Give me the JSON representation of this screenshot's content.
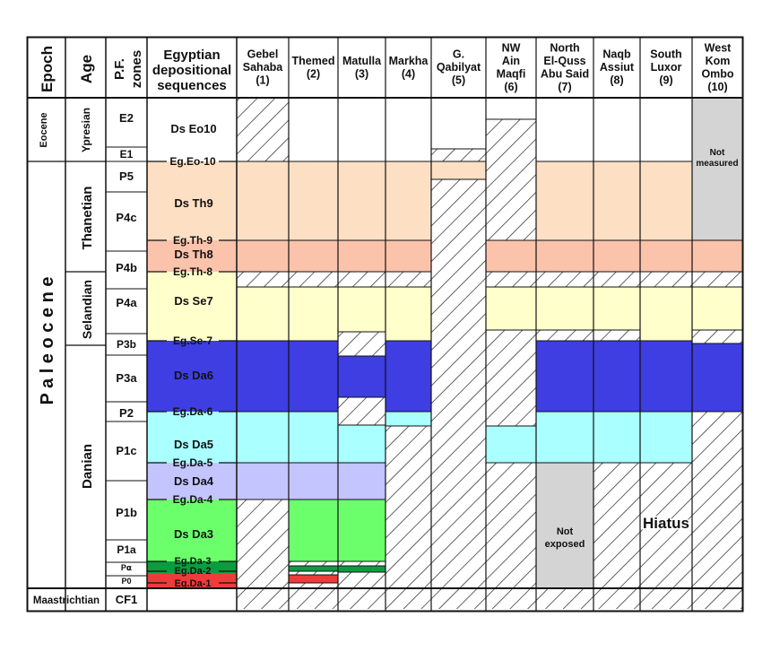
{
  "headers": {
    "epoch": "Epoch",
    "age": "Age",
    "pf_zones": [
      "P.F.",
      "zones"
    ],
    "sequences": [
      "Egyptian",
      "depositional",
      "sequences"
    ]
  },
  "sections": [
    {
      "lines": [
        "Gebel",
        "Sahaba",
        "(1)"
      ]
    },
    {
      "lines": [
        "Themed",
        "(2)"
      ]
    },
    {
      "lines": [
        "Matulla",
        "(3)"
      ]
    },
    {
      "lines": [
        "Markha",
        "(4)"
      ]
    },
    {
      "lines": [
        "G.",
        "Qabilyat",
        "(5)"
      ]
    },
    {
      "lines": [
        "NW",
        "Ain",
        "Maqfi",
        "(6)"
      ]
    },
    {
      "lines": [
        "North",
        "El-Quss",
        "Abu Said",
        "(7)"
      ]
    },
    {
      "lines": [
        "Naqb",
        "Assiut",
        "(8)"
      ]
    },
    {
      "lines": [
        "South",
        "Luxor",
        "(9)"
      ]
    },
    {
      "lines": [
        "West",
        "Kom",
        "Ombo",
        "(10)"
      ]
    }
  ],
  "epochs": [
    "Eocene",
    "P a l e o c e n e",
    "Maastrichtian"
  ],
  "ages": [
    "Ypresian",
    "Thanetian",
    "Selandian",
    "Danian"
  ],
  "zones": [
    "E2",
    "E1",
    "P5",
    "P4c",
    "P4b",
    "P4a",
    "P3b",
    "P3a",
    "P2",
    "P1c",
    "P1b",
    "P1a",
    "P⍺",
    "P0",
    "CF1"
  ],
  "sequences": [
    "Ds Eo10",
    "Ds Th9",
    "Ds Th8",
    "Ds Se7",
    "Ds Da6",
    "Ds Da5",
    "Ds Da4",
    "Ds Da3"
  ],
  "boundaries": [
    "Eg.Eo-10",
    "Eg.Th-9",
    "Eg.Th-8",
    "Eg.Se-7",
    "Eg.Da-6",
    "Eg.Da-5",
    "Eg.Da-4",
    "Eg.Da-3",
    "Eg.Da-2",
    "Eg.Da-1"
  ],
  "notes": {
    "not_measured": [
      "Not",
      "measured"
    ],
    "not_exposed": [
      "Not",
      "exposed"
    ],
    "hiatus": "Hiatus"
  },
  "colors": {
    "eo10": "#ffffff",
    "th9": "#fde0c4",
    "th8": "#fbc3ab",
    "se7": "#ffffcc",
    "da6": "#3e3ee2",
    "da5": "#aaffff",
    "da4": "#c4c4ff",
    "da3": "#6cff6c",
    "da2": "#0b9c3f",
    "da1": "#ee3b3b",
    "gray": "#d4d4d4"
  }
}
